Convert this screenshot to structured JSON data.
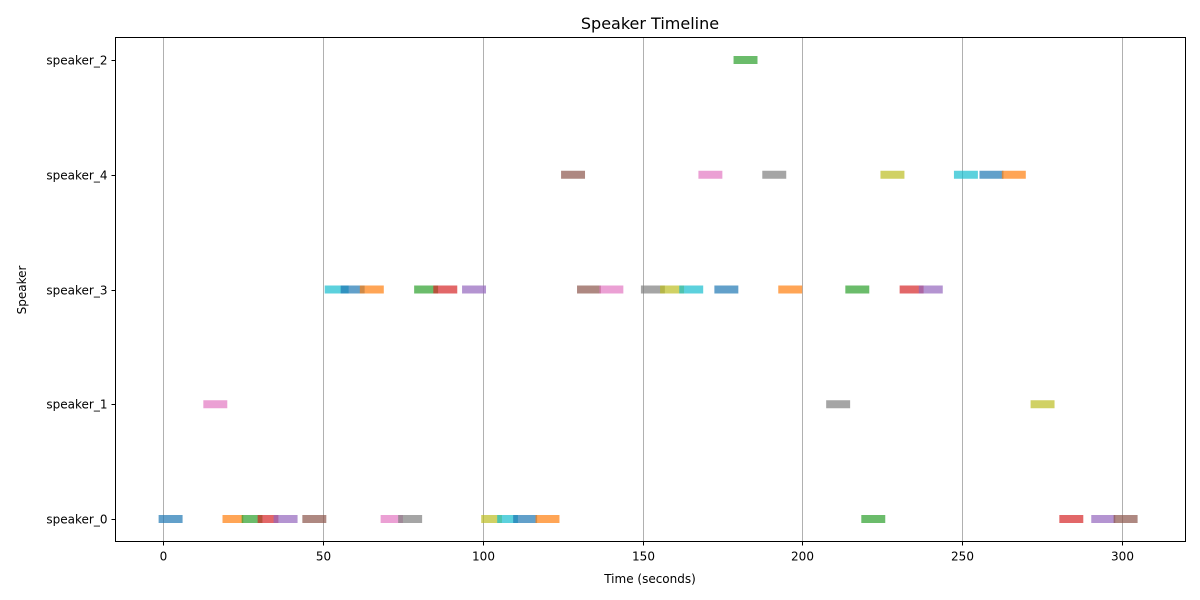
{
  "chart_data": {
    "type": "timeline",
    "title": "Speaker Timeline",
    "xlabel": "Time (seconds)",
    "ylabel": "Speaker",
    "xlim": [
      -15,
      320
    ],
    "x_ticks": [
      0,
      50,
      100,
      150,
      200,
      250,
      300
    ],
    "categories": [
      "speaker_0",
      "speaker_1",
      "speaker_3",
      "speaker_4",
      "speaker_2"
    ],
    "grid": "vertical",
    "palette": [
      "#1f77b4",
      "#ff7f0e",
      "#2ca02c",
      "#d62728",
      "#9467bd",
      "#8c564b",
      "#e377c2",
      "#7f7f7f",
      "#bcbd22",
      "#17becf"
    ],
    "segments": [
      {
        "speaker": "speaker_0",
        "start": -1.5,
        "end": 6,
        "color": "#1f77b4"
      },
      {
        "speaker": "speaker_0",
        "start": 18.5,
        "end": 25,
        "color": "#ff7f0e"
      },
      {
        "speaker": "speaker_0",
        "start": 24.5,
        "end": 31,
        "color": "#2ca02c"
      },
      {
        "speaker": "speaker_0",
        "start": 29.5,
        "end": 36,
        "color": "#d62728"
      },
      {
        "speaker": "speaker_0",
        "start": 34.5,
        "end": 42,
        "color": "#9467bd"
      },
      {
        "speaker": "speaker_0",
        "start": 43.5,
        "end": 51,
        "color": "#8c564b"
      },
      {
        "speaker": "speaker_0",
        "start": 68,
        "end": 75,
        "color": "#e377c2"
      },
      {
        "speaker": "speaker_0",
        "start": 73.5,
        "end": 81,
        "color": "#7f7f7f"
      },
      {
        "speaker": "speaker_0",
        "start": 99.5,
        "end": 106,
        "color": "#bcbd22"
      },
      {
        "speaker": "speaker_0",
        "start": 104.5,
        "end": 111,
        "color": "#17becf"
      },
      {
        "speaker": "speaker_0",
        "start": 109.5,
        "end": 117,
        "color": "#1f77b4"
      },
      {
        "speaker": "speaker_0",
        "start": 116.5,
        "end": 124,
        "color": "#ff7f0e"
      },
      {
        "speaker": "speaker_0",
        "start": 218.5,
        "end": 226,
        "color": "#2ca02c"
      },
      {
        "speaker": "speaker_0",
        "start": 280.5,
        "end": 288,
        "color": "#d62728"
      },
      {
        "speaker": "speaker_0",
        "start": 290.5,
        "end": 298,
        "color": "#9467bd"
      },
      {
        "speaker": "speaker_0",
        "start": 297.5,
        "end": 305,
        "color": "#8c564b"
      },
      {
        "speaker": "speaker_1",
        "start": 12.5,
        "end": 20,
        "color": "#e377c2"
      },
      {
        "speaker": "speaker_1",
        "start": 207.5,
        "end": 215,
        "color": "#7f7f7f"
      },
      {
        "speaker": "speaker_1",
        "start": 271.5,
        "end": 279,
        "color": "#bcbd22"
      },
      {
        "speaker": "speaker_3",
        "start": 50.5,
        "end": 58,
        "color": "#17becf"
      },
      {
        "speaker": "speaker_3",
        "start": 55.5,
        "end": 63,
        "color": "#1f77b4"
      },
      {
        "speaker": "speaker_3",
        "start": 61.5,
        "end": 69,
        "color": "#ff7f0e"
      },
      {
        "speaker": "speaker_3",
        "start": 78.5,
        "end": 86,
        "color": "#2ca02c"
      },
      {
        "speaker": "speaker_3",
        "start": 84.5,
        "end": 92,
        "color": "#d62728"
      },
      {
        "speaker": "speaker_3",
        "start": 93.5,
        "end": 101,
        "color": "#9467bd"
      },
      {
        "speaker": "speaker_3",
        "start": 129.5,
        "end": 137,
        "color": "#8c564b"
      },
      {
        "speaker": "speaker_3",
        "start": 136.5,
        "end": 144,
        "color": "#e377c2"
      },
      {
        "speaker": "speaker_3",
        "start": 149.5,
        "end": 157,
        "color": "#7f7f7f"
      },
      {
        "speaker": "speaker_3",
        "start": 155.5,
        "end": 163,
        "color": "#bcbd22"
      },
      {
        "speaker": "speaker_3",
        "start": 161.5,
        "end": 169,
        "color": "#17becf"
      },
      {
        "speaker": "speaker_3",
        "start": 172.5,
        "end": 180,
        "color": "#1f77b4"
      },
      {
        "speaker": "speaker_3",
        "start": 192.5,
        "end": 200,
        "color": "#ff7f0e"
      },
      {
        "speaker": "speaker_3",
        "start": 213.5,
        "end": 221,
        "color": "#2ca02c"
      },
      {
        "speaker": "speaker_3",
        "start": 230.5,
        "end": 238,
        "color": "#d62728"
      },
      {
        "speaker": "speaker_3",
        "start": 236.5,
        "end": 244,
        "color": "#9467bd"
      },
      {
        "speaker": "speaker_4",
        "start": 124.5,
        "end": 132,
        "color": "#8c564b"
      },
      {
        "speaker": "speaker_4",
        "start": 167.5,
        "end": 175,
        "color": "#e377c2"
      },
      {
        "speaker": "speaker_4",
        "start": 187.5,
        "end": 195,
        "color": "#7f7f7f"
      },
      {
        "speaker": "speaker_4",
        "start": 224.5,
        "end": 232,
        "color": "#bcbd22"
      },
      {
        "speaker": "speaker_4",
        "start": 247.5,
        "end": 255,
        "color": "#17becf"
      },
      {
        "speaker": "speaker_4",
        "start": 255.5,
        "end": 263,
        "color": "#1f77b4"
      },
      {
        "speaker": "speaker_4",
        "start": 262.5,
        "end": 270,
        "color": "#ff7f0e"
      },
      {
        "speaker": "speaker_2",
        "start": 178.5,
        "end": 186,
        "color": "#2ca02c"
      }
    ]
  }
}
